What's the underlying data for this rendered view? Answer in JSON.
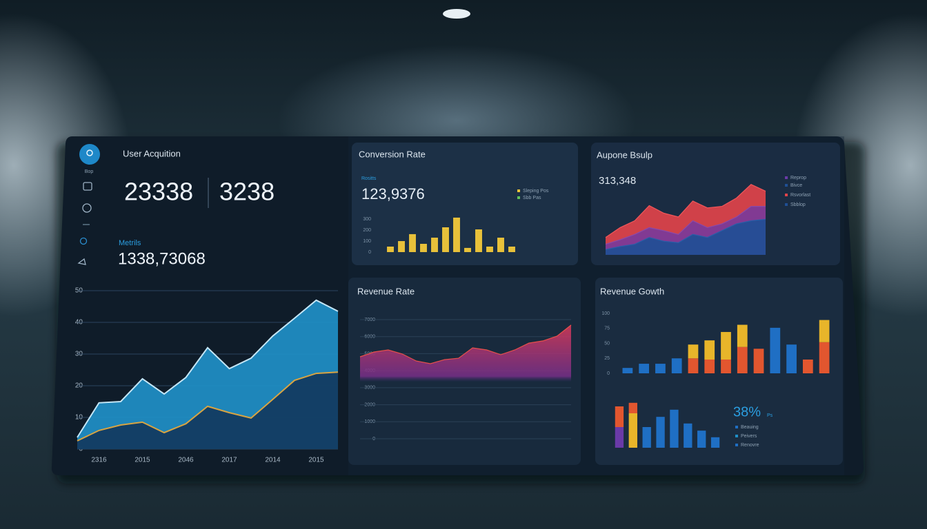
{
  "sidebar": {
    "label": "Bop"
  },
  "user_acquisition": {
    "title": "User Acquition",
    "stat_main": "23338",
    "stat_side": "3238",
    "metric_label": "Metrils",
    "metric_value": "1338,73068"
  },
  "conversion_rate": {
    "title": "Conversion Rate",
    "subtitle": "Rositts",
    "value": "123,9376",
    "legend": [
      "Sleping Pos",
      "Sbb Pas"
    ]
  },
  "aupone": {
    "title": "Aupone Bsulp",
    "value": "313,348",
    "legend": [
      "Reprop",
      "Bivce",
      "Rsvorlast",
      "Sbblop"
    ]
  },
  "revenue_rate": {
    "title": "Revenue Rate"
  },
  "revenue_growth": {
    "title": "Revenue Gowth",
    "stat": "38%",
    "stat_unit": "Ps",
    "legend": [
      "Beauing",
      "Peivers",
      "Renovre"
    ]
  },
  "chart_data": [
    {
      "type": "area",
      "categories": [
        null,
        "2316",
        null,
        "2015",
        null,
        "2046",
        null,
        "2017",
        null,
        "2014",
        null,
        "2015",
        null
      ],
      "series": [
        {
          "color": "#1f8fc7",
          "line_color": "#c4e6f6",
          "values": [
            3.7,
            14.6,
            15,
            22.2,
            17.4,
            22.6,
            32,
            25.4,
            28.7,
            35.7,
            41.3,
            47,
            43.5
          ]
        },
        {
          "color": "#123a5e",
          "line_color": "#d9a441",
          "values": [
            2.6,
            5.9,
            7.6,
            8.5,
            5.2,
            8,
            13.5,
            11.5,
            9.8,
            15.7,
            21.7,
            23.9,
            24.3
          ]
        }
      ],
      "ylim": [
        0,
        50
      ],
      "yticks": [
        0,
        10,
        20,
        30,
        40,
        50
      ],
      "grid": true
    },
    {
      "type": "bar",
      "categories": [
        null,
        null,
        null,
        null,
        null,
        null,
        null,
        null,
        null,
        null,
        null,
        null
      ],
      "values": [
        50,
        100,
        163,
        75,
        131,
        225,
        313,
        38,
        206,
        50,
        131,
        50
      ],
      "color": "#e8c13a",
      "ylim": [
        0,
        350
      ],
      "yticks": [
        0,
        100,
        200,
        300
      ],
      "grid": false
    },
    {
      "type": "area",
      "categories": [
        null,
        null,
        null,
        null,
        null,
        null,
        null,
        null,
        null,
        null,
        null,
        null
      ],
      "series": [
        {
          "color": "#e0434a",
          "line_color": "#f0575a",
          "values": [
            23,
            36,
            45,
            65,
            55,
            50,
            71,
            62,
            64,
            75,
            93,
            84
          ]
        },
        {
          "color": "#7a3a9a",
          "line_color": "#8a4aaa",
          "values": [
            14,
            20,
            27,
            36,
            32,
            27,
            45,
            36,
            41,
            50,
            64,
            64
          ]
        },
        {
          "color": "#1f4f95",
          "line_color": "#2a5ea8",
          "values": [
            7,
            11,
            14,
            23,
            18,
            16,
            27,
            23,
            32,
            41,
            45,
            47
          ]
        }
      ],
      "ylim": [
        0,
        100
      ],
      "grid": false
    },
    {
      "type": "area",
      "categories": [
        null,
        null,
        null,
        null,
        null,
        null,
        null,
        null,
        null,
        null,
        null,
        null,
        null,
        null,
        null,
        null
      ],
      "series": [
        {
          "color": "#b02c62",
          "line_color": "#e8504a",
          "values": [
            4815,
            5100,
            5220,
            4980,
            4570,
            4410,
            4650,
            4730,
            5340,
            5220,
            4940,
            5220,
            5620,
            5750,
            6030,
            6680
          ]
        }
      ],
      "ylim": [
        0,
        7000
      ],
      "yticks": [
        0,
        1000,
        2000,
        3000,
        4000,
        5000,
        6000,
        7000
      ],
      "grid": true
    },
    {
      "type": "bar",
      "stacked": true,
      "categories": [
        null,
        null,
        null,
        null,
        null,
        null,
        null,
        null,
        null,
        null,
        null,
        null,
        null
      ],
      "series": [
        {
          "color": "#1f6fc4",
          "values": [
            9,
            16,
            16,
            25,
            null,
            null,
            null,
            null,
            null,
            76,
            48,
            null,
            null
          ]
        },
        {
          "color": "#e2562f",
          "values": [
            null,
            null,
            null,
            null,
            25,
            23,
            23,
            44,
            41,
            null,
            null,
            23,
            52
          ]
        },
        {
          "color": "#e8b52a",
          "values": [
            null,
            null,
            null,
            null,
            23,
            32,
            46,
            37,
            null,
            null,
            null,
            null,
            37
          ]
        }
      ],
      "ylim": [
        0,
        100
      ],
      "yticks": [
        0,
        25,
        50,
        75,
        100
      ],
      "grid": false
    },
    {
      "type": "bar",
      "stacked": true,
      "categories": [
        null,
        null,
        null,
        null,
        null,
        null,
        null,
        null
      ],
      "series": [
        {
          "color": "#6a3aa8",
          "values": [
            37.5,
            null,
            null,
            null,
            null,
            null,
            null,
            null
          ]
        },
        {
          "color": "#e8b52a",
          "values": [
            null,
            62.5,
            null,
            null,
            null,
            null,
            null,
            null
          ]
        },
        {
          "color": "#e2562f",
          "values": [
            37.5,
            19,
            null,
            null,
            null,
            null,
            null,
            null
          ]
        },
        {
          "color": "#1f6fc4",
          "values": [
            null,
            null,
            37.5,
            56,
            69,
            44,
            31,
            19
          ]
        }
      ],
      "ylim": [
        0,
        100
      ],
      "grid": false
    }
  ]
}
